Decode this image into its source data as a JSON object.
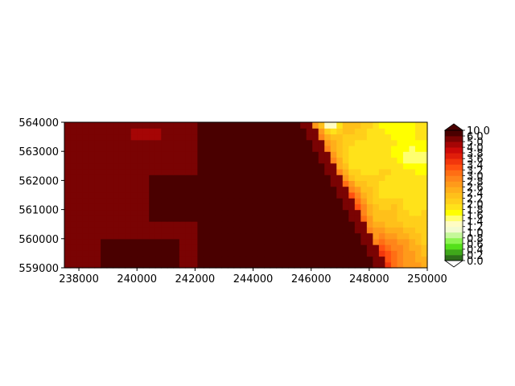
{
  "chart_data": {
    "type": "heatmap",
    "title": "",
    "xlabel": "",
    "ylabel": "",
    "xlim": [
      237500,
      250000
    ],
    "ylim": [
      559000,
      564000
    ],
    "xticks": [
      238000,
      240000,
      242000,
      244000,
      246000,
      248000,
      250000
    ],
    "xtick_labels": [
      "238000",
      "240000",
      "242000",
      "244000",
      "246000",
      "248000",
      "250000"
    ],
    "yticks": [
      559000,
      560000,
      561000,
      562000,
      563000,
      564000
    ],
    "ytick_labels": [
      "559000",
      "560000",
      "561000",
      "562000",
      "563000",
      "564000"
    ],
    "grid": false,
    "colorbar": {
      "extend": "both",
      "levels": [
        0.0,
        0.2,
        0.4,
        0.6,
        0.8,
        1.0,
        1.2,
        1.4,
        1.6,
        1.8,
        2.0,
        2.2,
        2.4,
        2.6,
        2.8,
        3.0,
        3.2,
        3.4,
        3.6,
        3.8,
        4.0,
        5.0,
        6.0,
        10.0
      ],
      "tick_labels": [
        "0.0",
        "0.2",
        "0.4",
        "0.6",
        "0.8",
        "1.0",
        "1.2",
        "1.4",
        "1.6",
        "1.8",
        "2.0",
        "2.2",
        "2.4",
        "2.6",
        "2.8",
        "3.0",
        "3.2",
        "3.4",
        "3.6",
        "3.8",
        "4.0",
        "5.0",
        "6.0",
        "10.0"
      ],
      "colors": [
        "#2d6e1a",
        "#3fa81a",
        "#54e01a",
        "#8cf550",
        "#c5f89a",
        "#f2fbd0",
        "#fffcc4",
        "#ffff70",
        "#ffff00",
        "#ffe21a",
        "#ffcf1a",
        "#ffc01a",
        "#ffae1a",
        "#ff9a1a",
        "#ff851a",
        "#ff6e14",
        "#ff5010",
        "#f2360c",
        "#e01e0a",
        "#cc0a08",
        "#a50505",
        "#7a0303",
        "#4a0000"
      ],
      "under_color": "#ffffff",
      "over_color": "#4a0000"
    },
    "grid_size": [
      60,
      25
    ],
    "regions_note_free": true
  }
}
